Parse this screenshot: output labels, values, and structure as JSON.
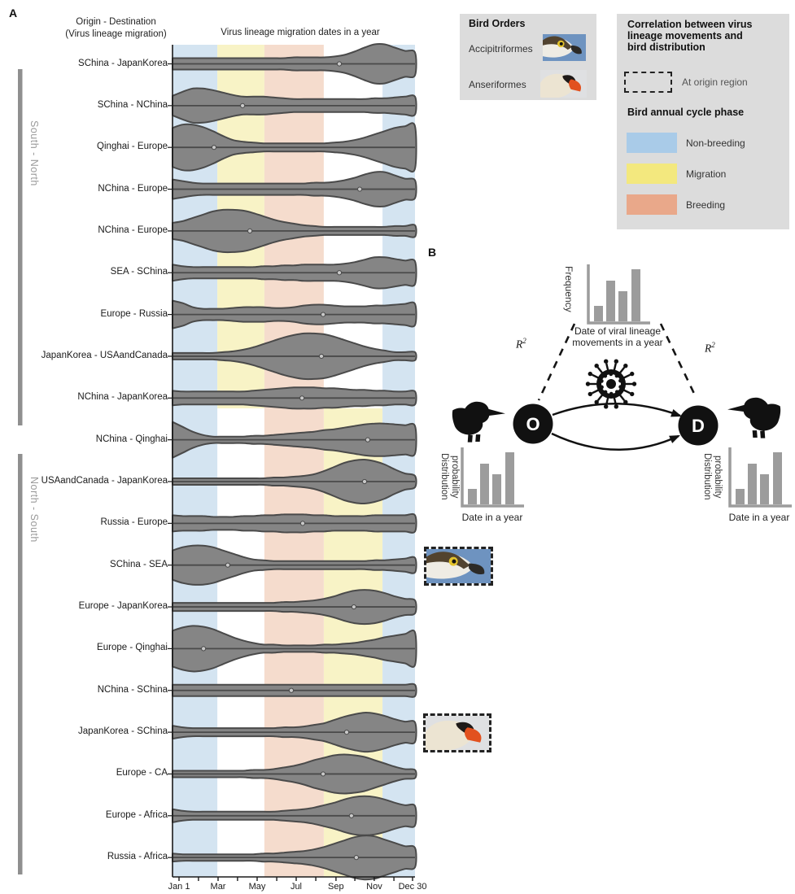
{
  "figure_labels": {
    "panelA": "A",
    "panelB": "B"
  },
  "panelA": {
    "col_header": [
      "Origin - Destination",
      "(Virus lineage migration)"
    ],
    "plot_title": "Virus lineage migration dates in a year",
    "group_labels": {
      "south_north": "South - North",
      "north_south": "North - South"
    }
  },
  "chart_data": {
    "type": "violin",
    "title": "Virus lineage migration dates in a year",
    "xlabel": "",
    "ylabel": "Origin - Destination (Virus lineage migration)",
    "x_axis": {
      "tick_labels": [
        "Jan 1",
        "Mar",
        "May",
        "Jul",
        "Sep",
        "Nov",
        "Dec 30"
      ],
      "tick_pos": [
        0.027,
        0.188,
        0.349,
        0.51,
        0.674,
        0.832,
        0.99
      ],
      "minor_pos": [
        0.107,
        0.268,
        0.43,
        0.591,
        0.752,
        0.913
      ]
    },
    "phase_bands": {
      "boundaries": [
        0,
        0.185,
        0.379,
        0.624,
        0.866,
        1
      ],
      "spring_layout": [
        "non-breeding",
        "migration",
        "breeding",
        "none",
        "non-breeding"
      ],
      "autumn_layout": [
        "non-breeding",
        "none",
        "breeding",
        "migration",
        "non-breeding"
      ]
    },
    "rows": [
      {
        "label": "SChina - JapanKorea",
        "group": "south_north",
        "season_layout": "spring",
        "median_t": 0.688,
        "photo": null,
        "widths": [
          7,
          7,
          7,
          7,
          7,
          7,
          7,
          7,
          7,
          7,
          7,
          7,
          8,
          8,
          8,
          8,
          9,
          11,
          15,
          20,
          24,
          24,
          20,
          16,
          14
        ]
      },
      {
        "label": "SChina - NChina",
        "group": "south_north",
        "season_layout": "spring",
        "median_t": 0.289,
        "photo": null,
        "widths": [
          12,
          17,
          21,
          21,
          19,
          16,
          13,
          11,
          11,
          11,
          10,
          9,
          8,
          8,
          8,
          8,
          8,
          8,
          8,
          8,
          9,
          9,
          10,
          11,
          11
        ]
      },
      {
        "label": "Qinghai - Europe",
        "group": "south_north",
        "season_layout": "spring",
        "median_t": 0.171,
        "photo": null,
        "widths": [
          24,
          28,
          28,
          25,
          20,
          14,
          9,
          7,
          6,
          5,
          5,
          5,
          5,
          5,
          5,
          5,
          6,
          7,
          9,
          12,
          16,
          20,
          24,
          26,
          26
        ]
      },
      {
        "label": "NChina - Europe",
        "group": "south_north",
        "season_layout": "spring",
        "median_t": 0.772,
        "photo": null,
        "widths": [
          12,
          10,
          8,
          7,
          7,
          7,
          7,
          7,
          7,
          7,
          7,
          7,
          7,
          7,
          8,
          8,
          9,
          11,
          14,
          18,
          21,
          21,
          17,
          13,
          11
        ]
      },
      {
        "label": "NChina - Europe",
        "group": "south_north",
        "season_layout": "spring",
        "median_t": 0.319,
        "photo": null,
        "widths": [
          10,
          12,
          16,
          20,
          24,
          26,
          26,
          25,
          22,
          18,
          14,
          11,
          9,
          7,
          6,
          5,
          5,
          5,
          5,
          5,
          5,
          5,
          6,
          6,
          7
        ]
      },
      {
        "label": "SEA - SChina",
        "group": "south_north",
        "season_layout": "spring",
        "median_t": 0.688,
        "photo": null,
        "widths": [
          10,
          8,
          7,
          7,
          7,
          7,
          7,
          7,
          7,
          8,
          8,
          9,
          9,
          10,
          10,
          10,
          10,
          11,
          13,
          16,
          19,
          19,
          17,
          15,
          14
        ]
      },
      {
        "label": "Europe - Russia",
        "group": "south_north",
        "season_layout": "spring",
        "median_t": 0.621,
        "photo": null,
        "widths": [
          17,
          14,
          9,
          7,
          7,
          7,
          8,
          9,
          9,
          9,
          8,
          8,
          9,
          11,
          12,
          12,
          11,
          10,
          10,
          10,
          11,
          11,
          12,
          13,
          13
        ]
      },
      {
        "label": "JapanKorea - USAandCanada",
        "group": "south_north",
        "season_layout": "spring",
        "median_t": 0.614,
        "photo": null,
        "widths": [
          4,
          4,
          4,
          4,
          4,
          5,
          6,
          8,
          11,
          15,
          19,
          23,
          26,
          28,
          28,
          27,
          24,
          20,
          16,
          12,
          9,
          7,
          5,
          5,
          5
        ]
      },
      {
        "label": "NChina - JapanKorea",
        "group": "south_north",
        "season_layout": "spring",
        "median_t": 0.534,
        "photo": null,
        "widths": [
          9,
          8,
          8,
          8,
          8,
          8,
          8,
          8,
          9,
          10,
          11,
          12,
          13,
          13,
          13,
          12,
          12,
          11,
          10,
          10,
          9,
          9,
          8,
          8,
          8
        ]
      },
      {
        "label": "NChina - Qinghai",
        "group": null,
        "season_layout": "autumn",
        "median_t": 0.805,
        "photo": null,
        "widths": [
          22,
          16,
          10,
          6,
          4,
          4,
          4,
          4,
          5,
          5,
          6,
          7,
          8,
          9,
          10,
          12,
          13,
          15,
          17,
          19,
          20,
          20,
          19,
          18,
          17
        ]
      },
      {
        "label": "USAandCanada - JapanKorea",
        "group": "north_south",
        "season_layout": "autumn",
        "median_t": 0.792,
        "photo": null,
        "widths": [
          4,
          4,
          4,
          4,
          4,
          4,
          4,
          4,
          4,
          4,
          5,
          5,
          6,
          7,
          9,
          13,
          18,
          23,
          26,
          27,
          25,
          21,
          15,
          10,
          7
        ]
      },
      {
        "label": "Russia - Europe",
        "group": "north_south",
        "season_layout": "autumn",
        "median_t": 0.537,
        "photo": null,
        "widths": [
          10,
          9,
          9,
          9,
          8,
          8,
          8,
          9,
          9,
          10,
          10,
          11,
          11,
          11,
          10,
          10,
          9,
          9,
          9,
          9,
          10,
          10,
          10,
          10,
          10
        ]
      },
      {
        "label": "SChina - SEA",
        "group": "north_south",
        "season_layout": "autumn",
        "median_t": 0.228,
        "photo": "hawk",
        "widths": [
          18,
          22,
          24,
          24,
          22,
          18,
          14,
          10,
          7,
          6,
          5,
          5,
          5,
          5,
          5,
          5,
          5,
          5,
          5,
          5,
          6,
          6,
          7,
          8,
          9
        ]
      },
      {
        "label": "Europe - JapanKorea",
        "group": "north_south",
        "season_layout": "autumn",
        "median_t": 0.748,
        "photo": null,
        "widths": [
          5,
          5,
          5,
          5,
          5,
          5,
          5,
          5,
          5,
          5,
          5,
          6,
          6,
          7,
          8,
          10,
          13,
          17,
          20,
          21,
          20,
          17,
          13,
          10,
          8
        ]
      },
      {
        "label": "Europe - Qinghai",
        "group": "north_south",
        "season_layout": "autumn",
        "median_t": 0.128,
        "photo": null,
        "widths": [
          22,
          26,
          28,
          27,
          24,
          19,
          14,
          10,
          7,
          5,
          5,
          4,
          4,
          4,
          4,
          5,
          5,
          6,
          7,
          9,
          11,
          14,
          16,
          18,
          20
        ]
      },
      {
        "label": "NChina - SChina",
        "group": "north_south",
        "season_layout": "autumn",
        "median_t": 0.49,
        "photo": null,
        "widths": [
          7,
          7,
          7,
          7,
          7,
          7,
          7,
          7,
          7,
          7,
          7,
          7,
          7,
          7,
          7,
          7,
          7,
          7,
          7,
          7,
          7,
          7,
          7,
          7,
          7
        ]
      },
      {
        "label": "JapanKorea - SChina",
        "group": "north_south",
        "season_layout": "autumn",
        "median_t": 0.718,
        "photo": "swan",
        "widths": [
          8,
          6,
          5,
          5,
          5,
          5,
          5,
          5,
          5,
          5,
          5,
          6,
          6,
          7,
          9,
          11,
          15,
          19,
          22,
          24,
          23,
          20,
          16,
          13,
          12
        ]
      },
      {
        "label": "Europe - CA",
        "group": "north_south",
        "season_layout": "autumn",
        "median_t": 0.621,
        "photo": null,
        "widths": [
          4,
          4,
          4,
          4,
          4,
          4,
          4,
          4,
          5,
          5,
          6,
          8,
          10,
          13,
          17,
          20,
          23,
          24,
          23,
          21,
          17,
          13,
          9,
          6,
          5
        ]
      },
      {
        "label": "Europe - Africa",
        "group": "north_south",
        "season_layout": "autumn",
        "median_t": 0.738,
        "photo": null,
        "widths": [
          8,
          6,
          5,
          5,
          5,
          5,
          5,
          5,
          5,
          5,
          5,
          6,
          7,
          8,
          10,
          13,
          16,
          20,
          23,
          24,
          23,
          20,
          16,
          13,
          12
        ]
      },
      {
        "label": "Russia - Africa",
        "group": "north_south",
        "season_layout": "autumn",
        "median_t": 0.758,
        "photo": null,
        "widths": [
          5,
          4,
          4,
          4,
          4,
          4,
          4,
          4,
          4,
          5,
          5,
          6,
          7,
          8,
          10,
          13,
          17,
          21,
          25,
          27,
          26,
          22,
          18,
          14,
          12
        ]
      }
    ]
  },
  "legend_bird_orders": {
    "title": "Bird Orders",
    "items": [
      {
        "label": "Accipitriformes",
        "icon": "hawk-photo"
      },
      {
        "label": "Anseriformes",
        "icon": "swan-photo"
      }
    ]
  },
  "legend_correlation": {
    "title": [
      "Correlation between virus",
      "lineage movements and",
      "bird distribution"
    ],
    "dashed_box_label": "At origin region"
  },
  "legend_phase": {
    "title": "Bird annual cycle phase",
    "items": [
      {
        "label": "Non-breeding",
        "color": "#a9cbe8"
      },
      {
        "label": "Migration",
        "color": "#f3e87e"
      },
      {
        "label": "Breeding",
        "color": "#e9a88a"
      }
    ]
  },
  "panelB": {
    "freq_label": "Frequency",
    "date_text": [
      "Date of viral lineage",
      "movements in a year"
    ],
    "r2_base": "R",
    "r2_sup": "2",
    "origin_label": "O",
    "destination_label": "D",
    "dist_label": [
      "Distribution",
      "probability"
    ],
    "date_axis_label": "Date in a year",
    "bar_values": [
      0.3,
      0.78,
      0.58,
      1.0
    ]
  },
  "colors": {
    "band_blue": "#d4e4f1",
    "band_yellow": "#f8f3c6",
    "band_salmon": "#f5dccd",
    "violin_fill": "#858585",
    "violin_stroke": "#4a4a4a",
    "axis": "#1a1a1a",
    "group_bar": "#8f8f8f",
    "diagram_gray": "#9c9c9c",
    "legend_bg": "#dcdcdc"
  }
}
